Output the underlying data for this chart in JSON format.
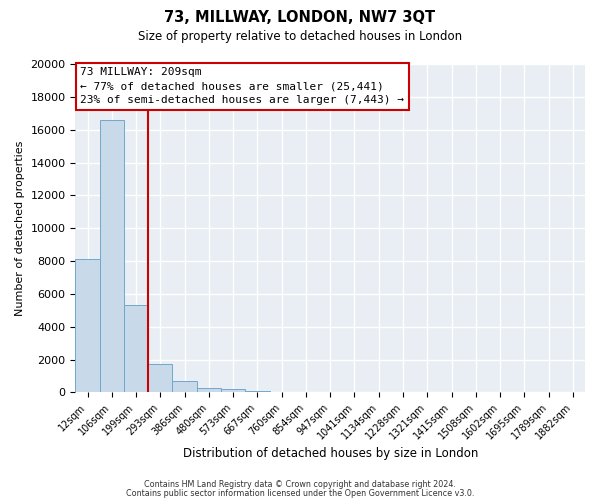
{
  "title": "73, MILLWAY, LONDON, NW7 3QT",
  "subtitle": "Size of property relative to detached houses in London",
  "xlabel": "Distribution of detached houses by size in London",
  "ylabel": "Number of detached properties",
  "footer_line1": "Contains HM Land Registry data © Crown copyright and database right 2024.",
  "footer_line2": "Contains public sector information licensed under the Open Government Licence v3.0.",
  "bar_labels": [
    "12sqm",
    "106sqm",
    "199sqm",
    "293sqm",
    "386sqm",
    "480sqm",
    "573sqm",
    "667sqm",
    "760sqm",
    "854sqm",
    "947sqm",
    "1041sqm",
    "1134sqm",
    "1228sqm",
    "1321sqm",
    "1415sqm",
    "1508sqm",
    "1602sqm",
    "1695sqm",
    "1789sqm",
    "1882sqm"
  ],
  "bar_values": [
    8100,
    16600,
    5300,
    1750,
    700,
    300,
    200,
    100,
    0,
    0,
    0,
    0,
    0,
    0,
    0,
    0,
    0,
    0,
    0,
    0,
    0
  ],
  "bar_color": "#c8d9ea",
  "bar_edge_color": "#6fa8cc",
  "property_label": "73 MILLWAY: 209sqm",
  "annotation_line1": "← 77% of detached houses are smaller (25,441)",
  "annotation_line2": "23% of semi-detached houses are larger (7,443) →",
  "vline_color": "#cc0000",
  "ylim": [
    0,
    20000
  ],
  "yticks": [
    0,
    2000,
    4000,
    6000,
    8000,
    10000,
    12000,
    14000,
    16000,
    18000,
    20000
  ],
  "background_color": "#ffffff",
  "plot_bg_color": "#e8eef4",
  "grid_color": "#ffffff"
}
